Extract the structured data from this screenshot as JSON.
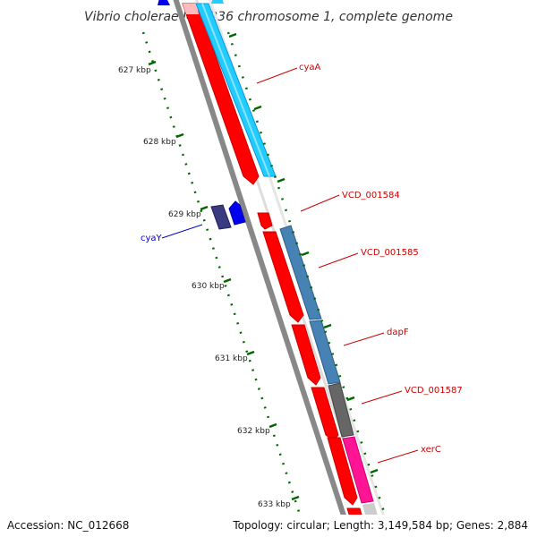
{
  "title": "Vibrio cholerae MJ-1236 chromosome 1, complete genome",
  "footer": {
    "accession": "Accession: NC_012668",
    "summary": "Topology: circular; Length: 3,149,584 bp; Genes: 2,884"
  },
  "ticks": [
    "627 kbp",
    "628 kbp",
    "629 kbp",
    "630 kbp",
    "631 kbp",
    "632 kbp",
    "633 kbp"
  ],
  "genes": [
    {
      "name": "cyaA",
      "color": "#cc0000"
    },
    {
      "name": "VCD_001584",
      "color": "#cc0000"
    },
    {
      "name": "VCD_001585",
      "color": "#cc0000"
    },
    {
      "name": "dapF",
      "color": "#cc0000"
    },
    {
      "name": "VCD_001587",
      "color": "#cc0000"
    },
    {
      "name": "xerC",
      "color": "#cc0000"
    },
    {
      "name": "cyaY",
      "color": "#0000cc"
    }
  ],
  "colors": {
    "cds": "#ff0000",
    "cds_reverse": "#0000ee",
    "gene_cyan": "#22ccff",
    "gene_steel": "#4682b4",
    "gene_gray": "#666666",
    "gene_pink": "#ff1493",
    "gene_navy": "#3a3a80",
    "backbone": "#888888",
    "tick": "#006600"
  }
}
